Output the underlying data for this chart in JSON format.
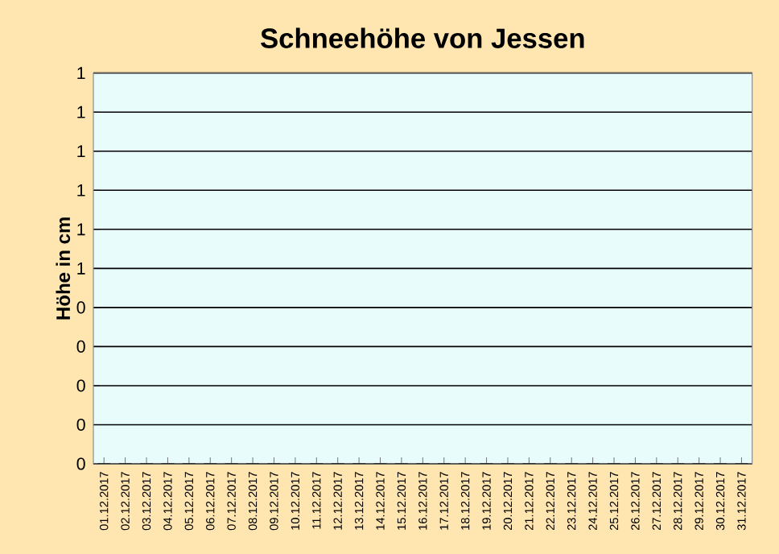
{
  "chart_data": {
    "type": "bar",
    "title": "Schneehöhe von Jessen",
    "ylabel": "Höhe in cm",
    "categories": [
      "01.12.2017",
      "02.12.2017",
      "03.12.2017",
      "04.12.2017",
      "05.12.2017",
      "06.12.2017",
      "07.12.2017",
      "08.12.2017",
      "09.12.2017",
      "10.12.2017",
      "11.12.2017",
      "12.12.2017",
      "13.12.2017",
      "14.12.2017",
      "15.12.2017",
      "16.12.2017",
      "17.12.2017",
      "18.12.2017",
      "19.12.2017",
      "20.12.2017",
      "21.12.2017",
      "22.12.2017",
      "23.12.2017",
      "24.12.2017",
      "25.12.2017",
      "26.12.2017",
      "27.12.2017",
      "28.12.2017",
      "29.12.2017",
      "30.12.2017",
      "31.12.2017"
    ],
    "values": [
      0,
      0,
      0,
      0,
      0,
      0,
      0,
      0,
      0,
      0,
      0,
      0,
      0,
      0,
      0,
      0,
      0,
      0,
      0,
      0,
      0,
      0,
      0,
      0,
      0,
      0,
      0,
      0,
      0,
      0,
      0
    ],
    "ylim": [
      0,
      1
    ],
    "yticks": [
      0,
      {
        "value": 0.1,
        "label": "0"
      },
      {
        "value": 0.2,
        "label": "0"
      },
      {
        "value": 0.3,
        "label": "0"
      },
      {
        "value": 0.4,
        "label": "0"
      },
      {
        "value": 0.5,
        "label": "1"
      },
      {
        "value": 0.6,
        "label": "1"
      },
      {
        "value": 0.7,
        "label": "1"
      },
      {
        "value": 0.8,
        "label": "1"
      },
      {
        "value": 0.9,
        "label": "1"
      },
      1
    ],
    "grid": "y"
  }
}
